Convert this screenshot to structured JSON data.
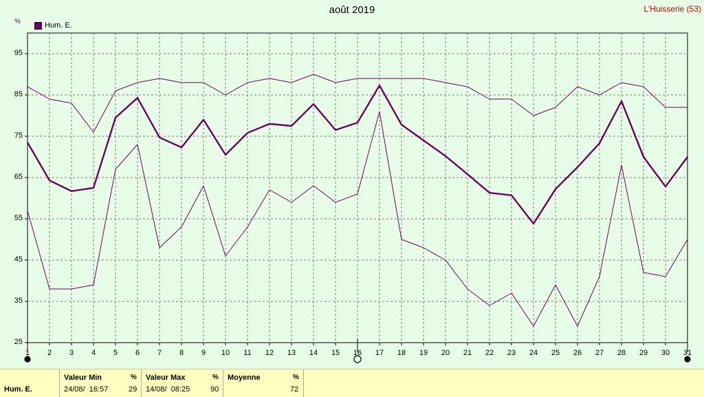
{
  "header": {
    "title": "août 2019",
    "station": "L'Huisserie (53)",
    "unit": "%",
    "legend_label": "Hum. E."
  },
  "colors": {
    "series": "#6a0060",
    "background": "#e8fde8",
    "footer_bg": "#ffffc0",
    "station_text": "#c00000"
  },
  "chart_data": {
    "type": "line",
    "title": "août 2019",
    "ylabel": "%",
    "ylim": [
      25,
      100
    ],
    "yticks": [
      "95",
      "85",
      "75",
      "65",
      "55",
      "45",
      "35",
      "25"
    ],
    "ytick_values": [
      95,
      85,
      75,
      65,
      55,
      45,
      35,
      25
    ],
    "xlim": [
      1,
      31
    ],
    "x": [
      "1",
      "2",
      "3",
      "4",
      "5",
      "6",
      "7",
      "8",
      "9",
      "10",
      "11",
      "12",
      "13",
      "14",
      "15",
      "16",
      "17",
      "18",
      "19",
      "20",
      "21",
      "22",
      "23",
      "24",
      "25",
      "26",
      "27",
      "28",
      "29",
      "30",
      "31"
    ],
    "grid": true,
    "legend": "top-left",
    "series": [
      {
        "name": "Hum. E.",
        "role": "max",
        "values": [
          87,
          84,
          83,
          76,
          86,
          88,
          89,
          88,
          88,
          85,
          88,
          89,
          88,
          90,
          88,
          89,
          89,
          89,
          89,
          88,
          87,
          84,
          84,
          80,
          82,
          87,
          85,
          88,
          87,
          82,
          82
        ]
      },
      {
        "name": "Hum. E.",
        "role": "mean",
        "values": [
          73.5,
          64.3,
          61.7,
          62.5,
          79.5,
          84.3,
          74.7,
          72.3,
          79,
          70.5,
          75.8,
          78,
          77.5,
          82.8,
          76.5,
          78.3,
          87.3,
          77.8,
          74,
          70.2,
          65.8,
          61.3,
          60.7,
          53.8,
          62.2,
          67.5,
          73.3,
          83.5,
          70,
          62.8,
          70
        ]
      },
      {
        "name": "Hum. E.",
        "role": "min",
        "values": [
          57,
          38,
          38,
          39,
          67,
          73,
          48,
          53,
          63,
          46,
          53,
          62,
          59,
          63,
          59,
          61,
          81,
          50,
          48,
          45,
          38,
          34,
          37,
          29,
          39,
          29,
          41,
          68,
          42,
          41,
          50
        ]
      }
    ]
  },
  "moon_markers": [
    {
      "day": 1,
      "phase": "new-moon"
    },
    {
      "day": 16,
      "phase": "full-moon"
    },
    {
      "day": 31,
      "phase": "new-moon"
    }
  ],
  "footer": {
    "row_label": "Hum. E.",
    "min": {
      "label": "Valeur Min",
      "unit": "%",
      "when": "24/08/  16:57",
      "value": "29"
    },
    "max": {
      "label": "Valeur Max",
      "unit": "%",
      "when": "14/08/  08:25",
      "value": "90"
    },
    "mean": {
      "label": "Moyenne",
      "unit": "%",
      "value": "72"
    }
  }
}
